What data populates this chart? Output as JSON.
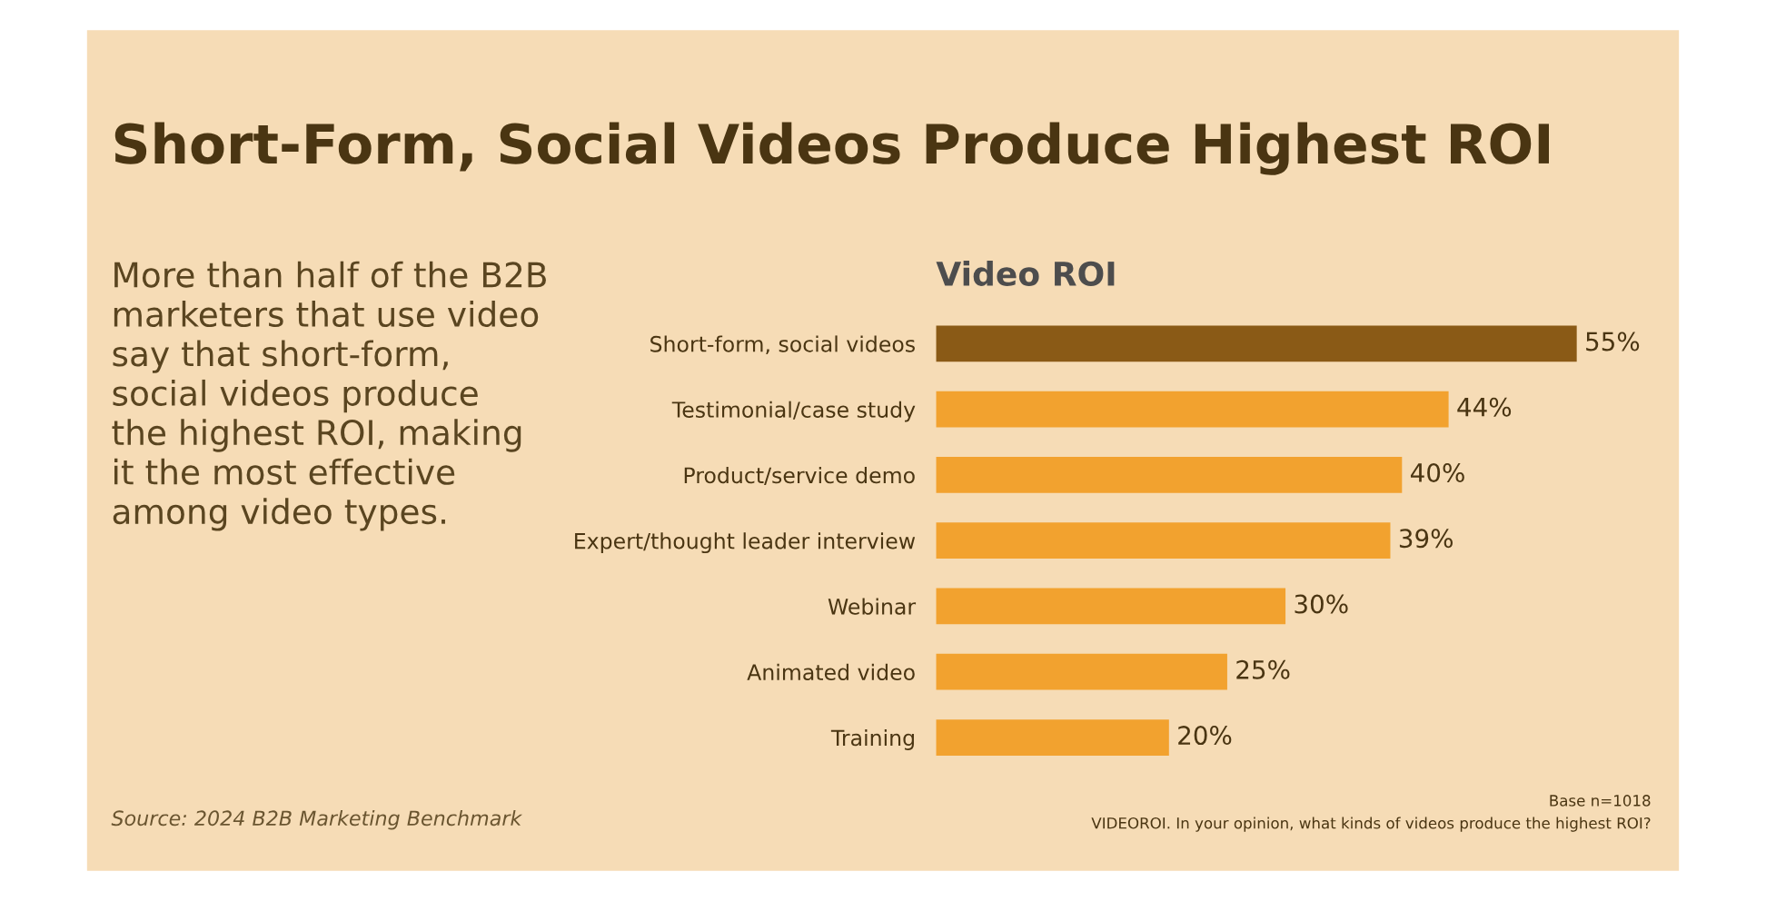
{
  "chart_data": {
    "type": "bar",
    "orientation": "horizontal",
    "title": "Short-Form, Social Videos Produce Highest ROI",
    "subtitle": "Video ROI",
    "categories": [
      "Short-form, social videos",
      "Testimonial/case study",
      "Product/service demo",
      "Expert/thought leader interview",
      "Webinar",
      "Animated video",
      "Training"
    ],
    "values": [
      55,
      44,
      40,
      39,
      30,
      25,
      20
    ],
    "colors": [
      "#8a5a16",
      "#f2a22f",
      "#f2a22f",
      "#f2a22f",
      "#f2a22f",
      "#f2a22f",
      "#f2a22f"
    ],
    "value_labels": [
      "55%",
      "44%",
      "40%",
      "39%",
      "30%",
      "25%",
      "20%"
    ],
    "annotations": [
      "More than half of the B2B\nmarketers that use video\nsay that short-form,\nsocial videos produce\nthe highest ROI, making\nit the most effective\namong video types.",
      "Source: 2024 B2B Marketing Benchmark",
      "Base n=1018",
      "VIDEOROI. In your opinion, what kinds of videos produce the highest ROI?"
    ]
  }
}
